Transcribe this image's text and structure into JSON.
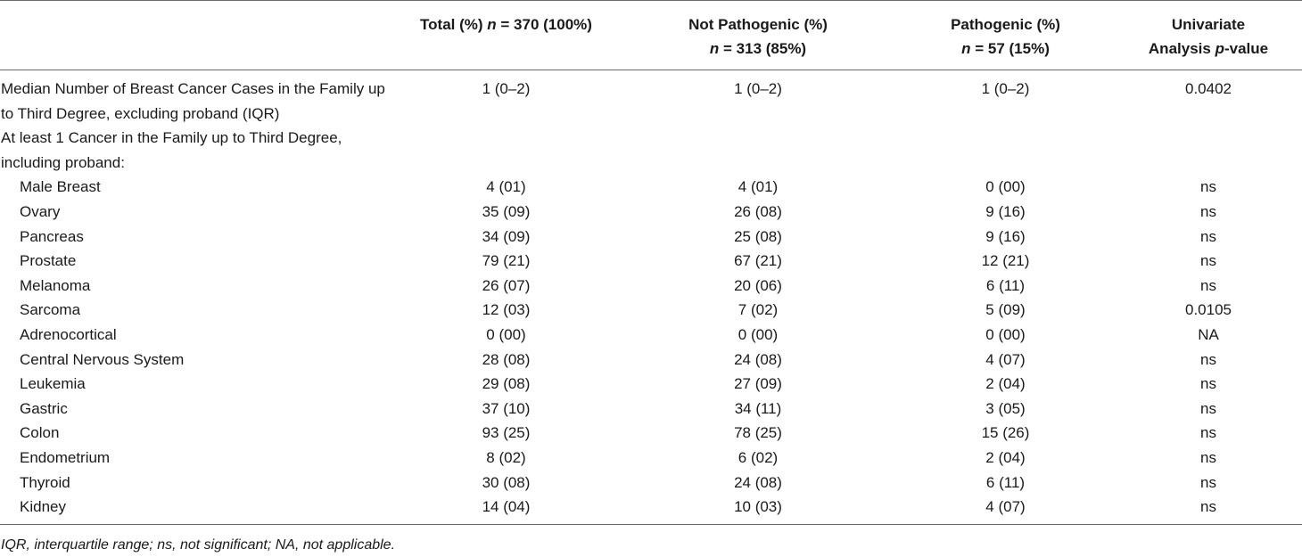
{
  "header": {
    "col0": "",
    "total_prefix": "Total (%) ",
    "total_n": "n",
    "total_suffix": " = 370 (100%)",
    "notpath_line1": "Not Pathogenic (%)",
    "notpath_n": "n",
    "notpath_suffix": " = 313 (85%)",
    "path_line1": "Pathogenic (%)",
    "path_n": "n",
    "path_suffix": " = 57 (15%)",
    "uni_line1": "Univariate",
    "uni_prefix": "Analysis ",
    "uni_p": "p",
    "uni_suffix": "-value"
  },
  "median_row": {
    "label": "Median Number of Breast Cancer Cases in the Family up to Third Degree, excluding proband (IQR)",
    "total": "1 (0–2)",
    "not_pathogenic": "1 (0–2)",
    "pathogenic": "1 (0–2)",
    "p_value": "0.0402"
  },
  "section_label": "At least 1 Cancer in the Family up to Third Degree, including proband:",
  "rows": [
    {
      "label": "Male Breast",
      "total": "4 (01)",
      "not_pathogenic": "4 (01)",
      "pathogenic": "0 (00)",
      "p_value": "ns"
    },
    {
      "label": "Ovary",
      "total": "35 (09)",
      "not_pathogenic": "26 (08)",
      "pathogenic": "9 (16)",
      "p_value": "ns"
    },
    {
      "label": "Pancreas",
      "total": "34 (09)",
      "not_pathogenic": "25 (08)",
      "pathogenic": "9 (16)",
      "p_value": "ns"
    },
    {
      "label": "Prostate",
      "total": "79 (21)",
      "not_pathogenic": "67 (21)",
      "pathogenic": "12 (21)",
      "p_value": "ns"
    },
    {
      "label": "Melanoma",
      "total": "26 (07)",
      "not_pathogenic": "20 (06)",
      "pathogenic": "6 (11)",
      "p_value": "ns"
    },
    {
      "label": "Sarcoma",
      "total": "12 (03)",
      "not_pathogenic": "7 (02)",
      "pathogenic": "5 (09)",
      "p_value": "0.0105"
    },
    {
      "label": "Adrenocortical",
      "total": "0 (00)",
      "not_pathogenic": "0 (00)",
      "pathogenic": "0 (00)",
      "p_value": "NA"
    },
    {
      "label": "Central Nervous System",
      "total": "28 (08)",
      "not_pathogenic": "24 (08)",
      "pathogenic": "4 (07)",
      "p_value": "ns"
    },
    {
      "label": "Leukemia",
      "total": "29 (08)",
      "not_pathogenic": "27 (09)",
      "pathogenic": "2 (04)",
      "p_value": "ns"
    },
    {
      "label": "Gastric",
      "total": "37 (10)",
      "not_pathogenic": "34 (11)",
      "pathogenic": "3 (05)",
      "p_value": "ns"
    },
    {
      "label": "Colon",
      "total": "93 (25)",
      "not_pathogenic": "78 (25)",
      "pathogenic": "15 (26)",
      "p_value": "ns"
    },
    {
      "label": "Endometrium",
      "total": "8 (02)",
      "not_pathogenic": "6 (02)",
      "pathogenic": "2 (04)",
      "p_value": "ns"
    },
    {
      "label": "Thyroid",
      "total": "30 (08)",
      "not_pathogenic": "24 (08)",
      "pathogenic": "6 (11)",
      "p_value": "ns"
    },
    {
      "label": "Kidney",
      "total": "14 (04)",
      "not_pathogenic": "10 (03)",
      "pathogenic": "4 (07)",
      "p_value": "ns"
    }
  ],
  "footnote": "IQR, interquartile range; ns, not significant; NA, not applicable."
}
